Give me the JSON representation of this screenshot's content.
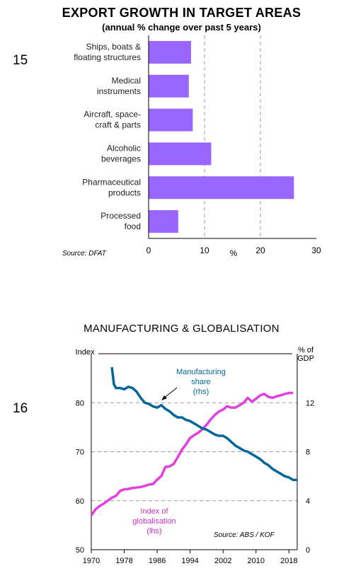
{
  "figure1": {
    "number": "15",
    "title": "EXPORT GROWTH IN TARGET AREAS",
    "subtitle": "(annual % change over past 5 years)",
    "source": "Source: DFAT",
    "colors": {
      "bar": "#9966ff"
    },
    "chart_data": {
      "type": "bar",
      "orientation": "horizontal",
      "categories": [
        [
          "Ships, boats &",
          "floating structures"
        ],
        [
          "Medical",
          "instruments"
        ],
        [
          "Aircraft, space-",
          "craft & parts"
        ],
        [
          "Alcoholic",
          "beverages"
        ],
        [
          "Pharmaceutical",
          "products"
        ],
        [
          "Processed",
          "food"
        ]
      ],
      "values": [
        7.6,
        7.2,
        7.9,
        11.2,
        26.0,
        5.3
      ],
      "xlabel": "%",
      "xlim": [
        0,
        30
      ],
      "xticks": [
        "0",
        "10",
        "20",
        "30"
      ],
      "grid": "vertical dashed"
    }
  },
  "figure2": {
    "number": "16",
    "title": "MANUFACTURING & GLOBALISATION",
    "left_axis_label": "Index",
    "right_axis_label": [
      "% of",
      "GDP"
    ],
    "source": "Source: ABS / KOF",
    "annotation_manufacturing": [
      "Manufacturing",
      "share",
      "(rhs)"
    ],
    "annotation_globalisation": [
      "Index of",
      "globalisation",
      "(lhs)"
    ],
    "colors": {
      "manufacturing": "#006699",
      "globalisation": "#e040e0",
      "annotation_manufacturing": "#006699",
      "annotation_globalisation": "#cc33cc"
    },
    "chart_data": {
      "type": "line",
      "xlim": [
        1970,
        2020
      ],
      "xticks": [
        "1970",
        "1978",
        "1986",
        "1994",
        "2002",
        "2010",
        "2018"
      ],
      "ylim_left": [
        50,
        90
      ],
      "yticks_left": [
        "50",
        "60",
        "70",
        "80"
      ],
      "ylim_right": [
        0,
        16
      ],
      "yticks_right": [
        "0",
        "4",
        "8",
        "12"
      ],
      "grid": "horizontal dashed",
      "series": [
        {
          "axis": "right",
          "x": [
            1975,
            1975.5,
            1976,
            1977,
            1978,
            1979,
            1980,
            1981,
            1982,
            1983,
            1984,
            1985,
            1986,
            1987,
            1988,
            1989,
            1990,
            1991,
            1992,
            1993,
            1994,
            1995,
            1996,
            1997,
            1998,
            1999,
            2000,
            2001,
            2002,
            2003,
            2004,
            2005,
            2006,
            2007,
            2008,
            2009,
            2010,
            2011,
            2012,
            2013,
            2014,
            2015,
            2016,
            2017,
            2018,
            2019,
            2020
          ],
          "values": [
            14.9,
            13.5,
            13.2,
            13.2,
            13.1,
            13.3,
            13.2,
            12.9,
            12.4,
            12.0,
            11.9,
            11.7,
            11.6,
            11.8,
            11.5,
            11.3,
            11.0,
            10.8,
            10.8,
            10.6,
            10.5,
            10.3,
            10.1,
            9.9,
            9.8,
            9.6,
            9.4,
            9.3,
            9.3,
            9.1,
            8.8,
            8.5,
            8.3,
            8.1,
            8.0,
            7.8,
            7.6,
            7.4,
            7.1,
            6.9,
            6.6,
            6.4,
            6.2,
            6.0,
            5.9,
            5.7,
            5.7
          ]
        },
        {
          "axis": "left",
          "x": [
            1970,
            1971,
            1972,
            1973,
            1974,
            1975,
            1976,
            1977,
            1978,
            1979,
            1980,
            1981,
            1982,
            1983,
            1984,
            1985,
            1986,
            1987,
            1988,
            1989,
            1990,
            1991,
            1992,
            1993,
            1994,
            1995,
            1996,
            1997,
            1998,
            1999,
            2000,
            2001,
            2002,
            2003,
            2004,
            2005,
            2006,
            2007,
            2008,
            2009,
            2010,
            2011,
            2012,
            2013,
            2014,
            2015,
            2016,
            2017,
            2018,
            2019
          ],
          "values": [
            57.0,
            58.2,
            58.9,
            59.4,
            60.0,
            60.6,
            61.0,
            62.0,
            62.3,
            62.4,
            62.6,
            62.7,
            62.8,
            63.0,
            63.3,
            63.4,
            64.3,
            65.0,
            66.9,
            67.0,
            67.5,
            68.9,
            70.4,
            71.5,
            72.8,
            73.4,
            73.9,
            74.6,
            75.5,
            76.6,
            77.5,
            78.2,
            78.6,
            79.3,
            79.0,
            79.0,
            79.5,
            80.0,
            81.0,
            80.2,
            80.8,
            81.5,
            81.8,
            81.2,
            81.0,
            81.3,
            81.5,
            81.8,
            82.0,
            82.0
          ]
        }
      ]
    }
  }
}
